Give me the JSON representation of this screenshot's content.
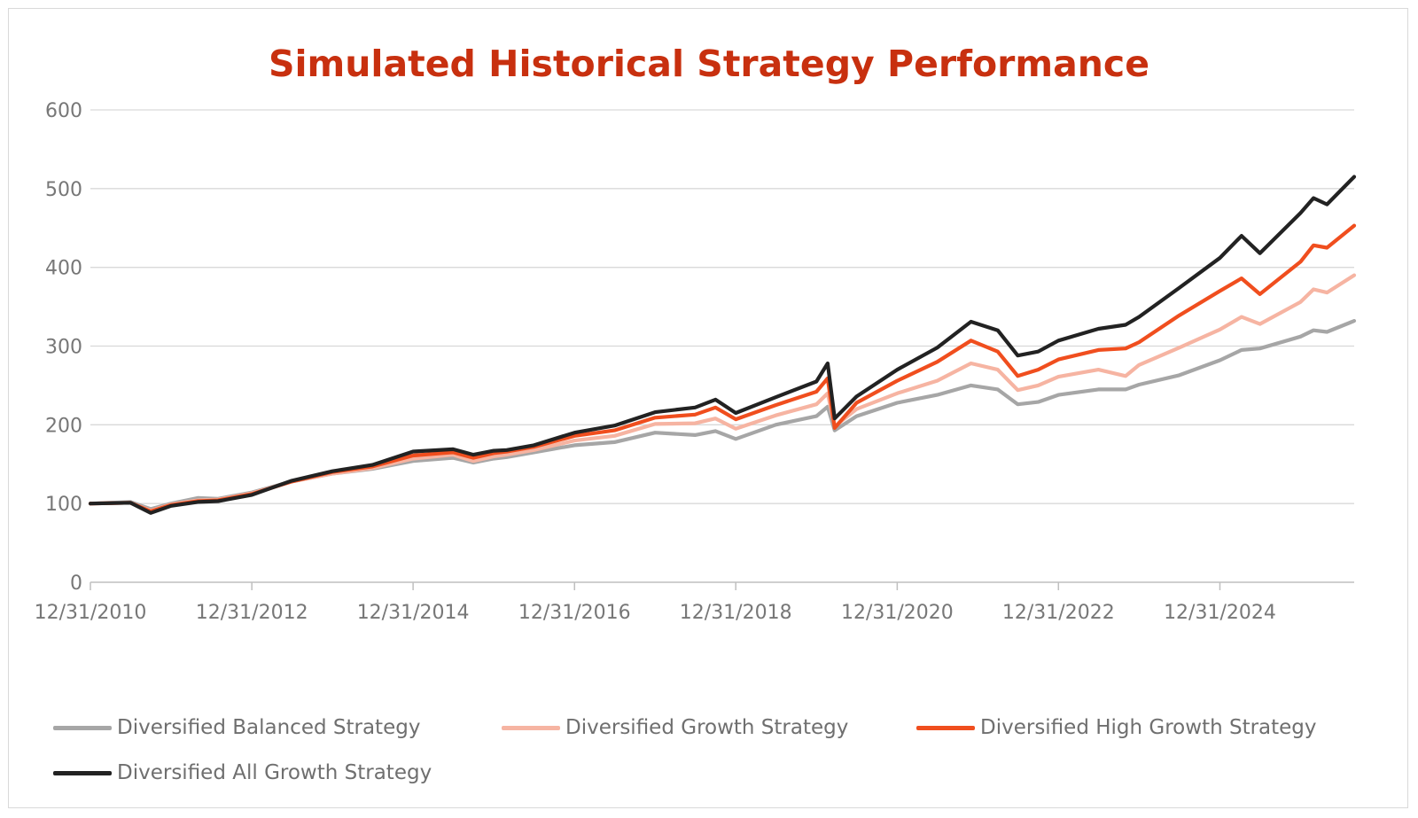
{
  "chart_data": {
    "type": "line",
    "title": "Simulated Historical Strategy Performance",
    "xlabel": "",
    "ylabel": "",
    "ylim": [
      0,
      600
    ],
    "yticks": [
      0,
      100,
      200,
      300,
      400,
      500,
      600
    ],
    "xlim": [
      "2010-12-31",
      "2026-08-31"
    ],
    "xticks": [
      "12/31/2010",
      "12/31/2012",
      "12/31/2014",
      "12/31/2016",
      "12/31/2018",
      "12/31/2020",
      "12/31/2022",
      "12/31/2024"
    ],
    "grid": true,
    "legend": "bottom",
    "x": [
      "2010-12-31",
      "2011-06-30",
      "2011-09-30",
      "2011-12-31",
      "2012-04-30",
      "2012-07-31",
      "2012-12-31",
      "2013-06-30",
      "2013-12-31",
      "2014-06-30",
      "2014-12-31",
      "2015-06-30",
      "2015-09-30",
      "2015-12-31",
      "2016-02-28",
      "2016-06-30",
      "2016-12-31",
      "2017-06-30",
      "2017-12-31",
      "2018-06-30",
      "2018-09-30",
      "2018-12-31",
      "2019-06-30",
      "2019-12-31",
      "2020-02-20",
      "2020-03-23",
      "2020-06-30",
      "2020-12-31",
      "2021-06-30",
      "2021-11-30",
      "2022-03-31",
      "2022-06-30",
      "2022-09-30",
      "2022-12-31",
      "2023-06-30",
      "2023-10-31",
      "2023-12-31",
      "2024-06-30",
      "2024-12-31",
      "2025-04-08",
      "2025-06-30",
      "2025-12-31",
      "2026-02-28",
      "2026-04-30",
      "2026-08-31"
    ],
    "series": [
      {
        "name": "Diversified Balanced Strategy",
        "color": "#a6a6a6",
        "values": [
          100,
          102,
          93,
          100,
          107,
          106,
          114,
          128,
          138,
          144,
          154,
          158,
          152,
          157,
          159,
          165,
          174,
          178,
          190,
          187,
          192,
          182,
          200,
          211,
          223,
          193,
          211,
          228,
          238,
          250,
          245,
          226,
          229,
          238,
          245,
          245,
          251,
          263,
          282,
          295,
          297,
          312,
          320,
          318,
          332
        ]
      },
      {
        "name": "Diversified Growth Strategy",
        "color": "#f6b4a2",
        "values": [
          100,
          101,
          91,
          99,
          104,
          105,
          113,
          128,
          138,
          145,
          157,
          162,
          154,
          160,
          162,
          168,
          180,
          186,
          201,
          202,
          208,
          195,
          212,
          226,
          240,
          198,
          220,
          240,
          256,
          278,
          270,
          244,
          250,
          261,
          270,
          262,
          276,
          298,
          321,
          337,
          328,
          356,
          372,
          368,
          390
        ]
      },
      {
        "name": "Diversified High Growth Strategy",
        "color": "#f04e1e",
        "values": [
          100,
          101,
          90,
          98,
          103,
          104,
          112,
          128,
          140,
          147,
          161,
          165,
          158,
          164,
          166,
          172,
          186,
          193,
          209,
          213,
          222,
          207,
          225,
          242,
          259,
          196,
          228,
          256,
          280,
          307,
          293,
          262,
          270,
          283,
          295,
          297,
          305,
          339,
          370,
          386,
          366,
          407,
          428,
          425,
          453
        ]
      },
      {
        "name": "Diversified All Growth Strategy",
        "color": "#222222",
        "values": [
          100,
          101,
          88,
          97,
          102,
          103,
          111,
          129,
          141,
          149,
          166,
          169,
          162,
          167,
          168,
          174,
          190,
          199,
          216,
          222,
          232,
          215,
          235,
          255,
          278,
          208,
          236,
          270,
          298,
          331,
          320,
          288,
          293,
          307,
          322,
          327,
          337,
          374,
          412,
          440,
          418,
          469,
          488,
          480,
          515
        ]
      }
    ]
  }
}
